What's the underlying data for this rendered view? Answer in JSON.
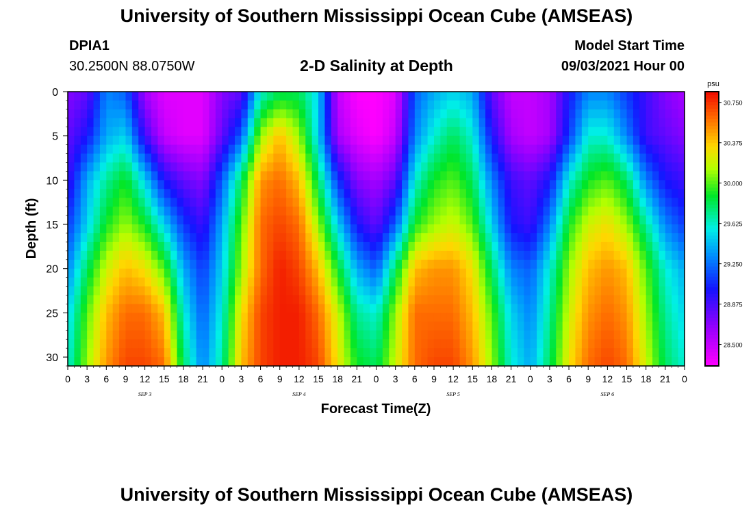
{
  "page_title": "University of Southern Mississippi Ocean Cube (AMSEAS)",
  "footer_title": "University of Southern Mississippi Ocean Cube (AMSEAS)",
  "station": {
    "id": "DPIA1",
    "coords": "30.2500N  88.0750W"
  },
  "model": {
    "label": "Model Start Time",
    "start": "09/03/2021 Hour 00"
  },
  "chart_data": {
    "type": "heatmap",
    "title": "2-D Salinity at Depth",
    "xlabel": "Forecast Time(Z)",
    "ylabel": "Depth (ft)",
    "colorbar_unit": "psu",
    "colorbar_ticks": [
      "30.750",
      "30.375",
      "30.000",
      "29.625",
      "29.250",
      "28.875",
      "28.500"
    ],
    "colorbar_range": [
      28.3,
      30.85
    ],
    "x_ticks": [
      "0",
      "3",
      "6",
      "9",
      "12",
      "15",
      "18",
      "21",
      "0",
      "3",
      "6",
      "9",
      "12",
      "15",
      "18",
      "21",
      "0",
      "3",
      "6",
      "9",
      "12",
      "15",
      "18",
      "21",
      "0",
      "3",
      "6",
      "9",
      "12",
      "15",
      "18",
      "21",
      "0"
    ],
    "xlim_hours": [
      0,
      96
    ],
    "date_labels": [
      {
        "label": "SEP 3",
        "hour": 12
      },
      {
        "label": "SEP 4",
        "hour": 36
      },
      {
        "label": "SEP 5",
        "hour": 60
      },
      {
        "label": "SEP 6",
        "hour": 84
      }
    ],
    "y_ticks": [
      "0",
      "5",
      "10",
      "15",
      "20",
      "25",
      "30"
    ],
    "ylim_ft": [
      0,
      31
    ],
    "depth_ft": [
      0,
      5,
      10,
      15,
      20,
      25,
      31
    ],
    "time_hours": [
      0,
      3,
      6,
      9,
      12,
      15,
      18,
      21,
      24,
      27,
      30,
      33,
      36,
      39,
      42,
      45,
      48,
      51,
      54,
      57,
      60,
      63,
      66,
      69,
      72,
      75,
      78,
      81,
      84,
      87,
      90,
      93,
      96
    ],
    "salinity_psu": [
      [
        28.7,
        28.8,
        29.3,
        29.2,
        28.6,
        28.4,
        28.4,
        28.4,
        28.7,
        28.8,
        29.6,
        29.8,
        29.8,
        29.5,
        28.5,
        28.3,
        28.3,
        28.4,
        29.2,
        29.4,
        29.5,
        29.4,
        28.8,
        28.5,
        28.5,
        28.6,
        29.0,
        29.3,
        29.3,
        29.1,
        28.9,
        28.7,
        28.6
      ],
      [
        28.8,
        29.0,
        29.4,
        29.5,
        28.9,
        28.5,
        28.4,
        28.4,
        28.8,
        29.2,
        30.1,
        30.4,
        30.1,
        29.5,
        28.6,
        28.4,
        28.3,
        28.5,
        29.3,
        29.6,
        29.8,
        29.6,
        29.0,
        28.6,
        28.5,
        28.6,
        29.1,
        29.6,
        29.6,
        29.3,
        28.9,
        28.8,
        28.7
      ],
      [
        28.9,
        29.4,
        29.7,
        29.9,
        29.5,
        29.0,
        28.8,
        28.7,
        29.2,
        29.8,
        30.5,
        30.6,
        30.4,
        29.8,
        29.1,
        28.7,
        28.6,
        28.8,
        29.6,
        29.9,
        30.0,
        29.8,
        29.3,
        28.9,
        28.8,
        29.0,
        29.6,
        29.9,
        30.0,
        29.8,
        29.3,
        29.0,
        28.9
      ],
      [
        29.1,
        29.5,
        29.9,
        30.1,
        29.9,
        29.5,
        29.1,
        28.9,
        29.4,
        30.0,
        30.6,
        30.7,
        30.6,
        30.1,
        29.5,
        29.0,
        28.8,
        29.2,
        29.9,
        30.1,
        30.2,
        30.0,
        29.5,
        29.0,
        28.9,
        29.3,
        29.9,
        30.2,
        30.3,
        30.1,
        29.7,
        29.3,
        29.1
      ],
      [
        29.3,
        29.8,
        30.2,
        30.4,
        30.3,
        30.0,
        29.4,
        29.1,
        29.5,
        30.1,
        30.6,
        30.8,
        30.7,
        30.4,
        29.9,
        29.4,
        29.2,
        29.8,
        30.4,
        30.5,
        30.5,
        30.3,
        29.8,
        29.3,
        29.2,
        29.6,
        30.1,
        30.4,
        30.5,
        30.4,
        30.0,
        29.6,
        29.4
      ],
      [
        29.5,
        30.0,
        30.4,
        30.6,
        30.6,
        30.4,
        29.6,
        29.2,
        29.6,
        30.3,
        30.7,
        30.8,
        30.8,
        30.6,
        30.2,
        29.7,
        29.6,
        30.1,
        30.6,
        30.6,
        30.6,
        30.4,
        30.0,
        29.5,
        29.3,
        29.7,
        30.2,
        30.5,
        30.6,
        30.5,
        30.1,
        29.7,
        29.5
      ],
      [
        29.6,
        30.1,
        30.5,
        30.7,
        30.7,
        30.6,
        29.8,
        29.3,
        29.7,
        30.4,
        30.7,
        30.8,
        30.8,
        30.7,
        30.3,
        29.9,
        29.8,
        30.2,
        30.6,
        30.7,
        30.7,
        30.5,
        30.1,
        29.6,
        29.4,
        29.8,
        30.3,
        30.6,
        30.7,
        30.6,
        30.2,
        29.8,
        29.6
      ]
    ]
  }
}
